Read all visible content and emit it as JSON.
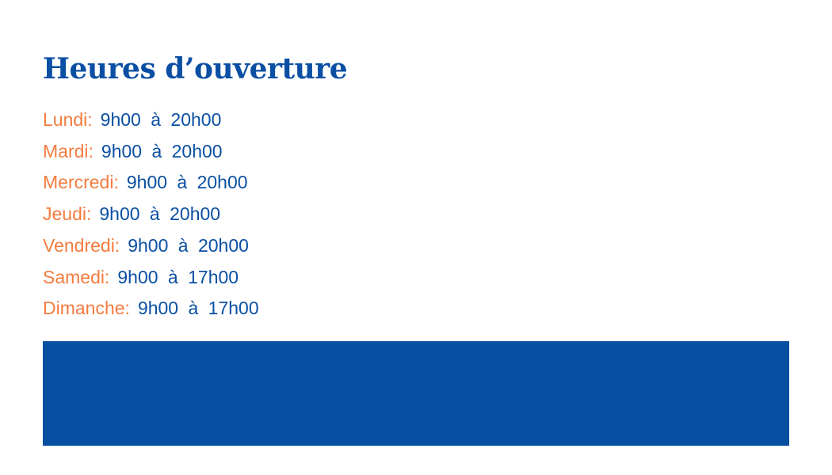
{
  "title": "Heures d’ouverture",
  "hours": [
    {
      "day": "Lundi:",
      "time": "9h00 à 20h00"
    },
    {
      "day": "Mardi:",
      "time": "9h00 à 20h00"
    },
    {
      "day": "Mercredi:",
      "time": "9h00 à 20h00"
    },
    {
      "day": "Jeudi:",
      "time": "9h00 à 20h00"
    },
    {
      "day": "Vendredi:",
      "time": "9h00 à 20h00"
    },
    {
      "day": "Samedi:",
      "time": "9h00 à 17h00"
    },
    {
      "day": "Dimanche:",
      "time": "9h00 à 17h00"
    }
  ],
  "colors": {
    "primary": "#0a4fa3",
    "accent": "#f47b3f",
    "banner": "#074fa2"
  }
}
